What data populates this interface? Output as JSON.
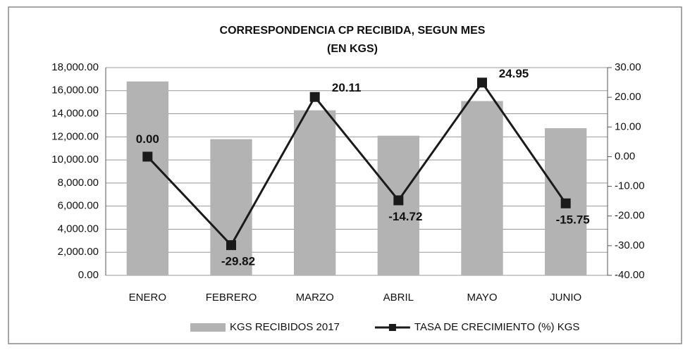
{
  "chart_data": {
    "type": "bar_line",
    "title": "CORRESPONDENCIA CP RECIBIDA, SEGUN MES",
    "subtitle": "(EN KGS)",
    "categories": [
      "ENERO",
      "FEBRERO",
      "MARZO",
      "ABRIL",
      "MAYO",
      "JUNIO"
    ],
    "series": [
      {
        "name": "KGS RECIBIDOS 2017",
        "type": "bar",
        "color": "#b3b3b3",
        "values": [
          16800,
          11800,
          14300,
          12100,
          15100,
          12750
        ]
      },
      {
        "name": "TASA DE CRECIMIENTO (%) KGS",
        "type": "line",
        "axis": "y2",
        "color": "#1a1a1a",
        "values": [
          0.0,
          -29.82,
          20.11,
          -14.72,
          24.95,
          -15.75
        ],
        "value_labels": [
          "0.00",
          "-29.82",
          "20.11",
          "-14.72",
          "24.95",
          "-15.75"
        ]
      }
    ],
    "ylim": [
      0,
      18000
    ],
    "yticks": [
      {
        "value": 0,
        "label": "0.00"
      },
      {
        "value": 2000,
        "label": "2,000.00"
      },
      {
        "value": 4000,
        "label": "4,000.00"
      },
      {
        "value": 6000,
        "label": "6,000.00"
      },
      {
        "value": 8000,
        "label": "8,000.00"
      },
      {
        "value": 10000,
        "label": "10,000.00"
      },
      {
        "value": 12000,
        "label": "12,000.00"
      },
      {
        "value": 14000,
        "label": "14,000.00"
      },
      {
        "value": 16000,
        "label": "16,000.00"
      },
      {
        "value": 18000,
        "label": "18,000.00"
      }
    ],
    "y2lim": [
      -40,
      30
    ],
    "y2ticks": [
      {
        "value": -40,
        "label": "-40.00"
      },
      {
        "value": -30,
        "label": "-30.00"
      },
      {
        "value": -20,
        "label": "-20.00"
      },
      {
        "value": -10,
        "label": "-10.00"
      },
      {
        "value": 0,
        "label": "0.00"
      },
      {
        "value": 10,
        "label": "10.00"
      },
      {
        "value": 20,
        "label": "20.00"
      },
      {
        "value": 30,
        "label": "30.00"
      }
    ],
    "grid": true
  }
}
